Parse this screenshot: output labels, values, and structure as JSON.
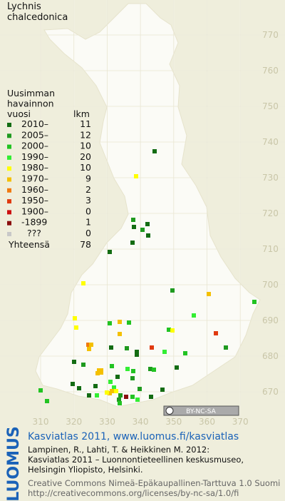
{
  "title": [
    "Lychnis",
    "chalcedonica"
  ],
  "legend": {
    "heading": [
      "Uusimman",
      "havainnon",
      "vuosi"
    ],
    "count_heading": "lkm",
    "rows": [
      {
        "label": "2010–",
        "count": "11",
        "color": "#136c13"
      },
      {
        "label": "2005–",
        "count": "12",
        "color": "#1f9a1f"
      },
      {
        "label": "2000–",
        "count": "10",
        "color": "#22c322"
      },
      {
        "label": "1990–",
        "count": "20",
        "color": "#33ee33"
      },
      {
        "label": "1980–",
        "count": "10",
        "color": "#ffff00"
      },
      {
        "label": "1970–",
        "count": "9",
        "color": "#f4c000"
      },
      {
        "label": "1960–",
        "count": "2",
        "color": "#f07a10"
      },
      {
        "label": "1950–",
        "count": "3",
        "color": "#e03a10"
      },
      {
        "label": "1900–",
        "count": "0",
        "color": "#cc1010"
      },
      {
        "label": "-1899",
        "count": "1",
        "color": "#8a0e0e"
      },
      {
        "label": "???",
        "count": "0",
        "color": "#c8c8c8"
      }
    ],
    "total_label": "Yhteensä",
    "total": "78"
  },
  "grid_north": [
    "770",
    "760",
    "750",
    "740",
    "730",
    "720",
    "710",
    "700",
    "690",
    "680",
    "670"
  ],
  "grid_east": [
    "310",
    "320",
    "330",
    "340",
    "350",
    "360",
    "370"
  ],
  "license_badge": "BY-NC-SA",
  "footer": {
    "logo": "LUOMUS",
    "headline": "Kasviatlas 2011, www.luomus.fi/kasviatlas",
    "citation": [
      "Lampinen, R., Lahti, T. & Heikkinen M. 2012:",
      "Kasviatlas 2011 – Luonnontieteellinen keskusmuseo,",
      "Helsingin Yliopisto, Helsinki."
    ],
    "license": [
      "Creative Commons Nimeä-Epäkaupallinen-Tarttuva 1.0 Suomi",
      "http://creativecommons.org/licenses/by-nc-sa/1.0/fi"
    ]
  }
}
